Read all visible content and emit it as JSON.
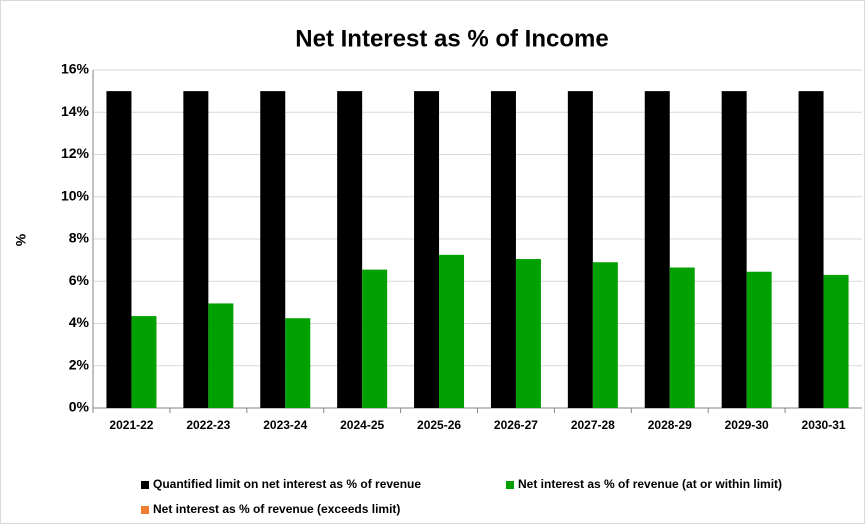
{
  "chart_data": {
    "type": "bar",
    "title": "Net Interest as % of Income",
    "y_label": "%",
    "categories": [
      "2021-22",
      "2022-23",
      "2023-24",
      "2024-25",
      "2025-26",
      "2026-27",
      "2027-28",
      "2028-29",
      "2029-30",
      "2030-31"
    ],
    "series": [
      {
        "name": "Quantified limit on net interest as % of revenue",
        "color": "#000000",
        "values": [
          15,
          15,
          15,
          15,
          15,
          15,
          15,
          15,
          15,
          15
        ]
      },
      {
        "name": "Net interest as % of revenue (at or within limit)",
        "color": "#00a000",
        "values": [
          4.35,
          4.95,
          4.25,
          6.55,
          7.25,
          7.05,
          6.9,
          6.65,
          6.45,
          6.3
        ]
      },
      {
        "name": "Net interest as % of revenue (exceeds limit)",
        "color": "#ed7d31",
        "values": [
          null,
          null,
          null,
          null,
          null,
          null,
          null,
          null,
          null,
          null
        ]
      }
    ],
    "ylim": [
      0,
      16
    ],
    "yticks": [
      {
        "value": 0,
        "label": "0%"
      },
      {
        "value": 2,
        "label": "2%"
      },
      {
        "value": 4,
        "label": "4%"
      },
      {
        "value": 6,
        "label": "6%"
      },
      {
        "value": 8,
        "label": "8%"
      },
      {
        "value": 10,
        "label": "10%"
      },
      {
        "value": 12,
        "label": "12%"
      },
      {
        "value": 14,
        "label": "14%"
      },
      {
        "value": 16,
        "label": "16%"
      }
    ],
    "grid": true
  }
}
